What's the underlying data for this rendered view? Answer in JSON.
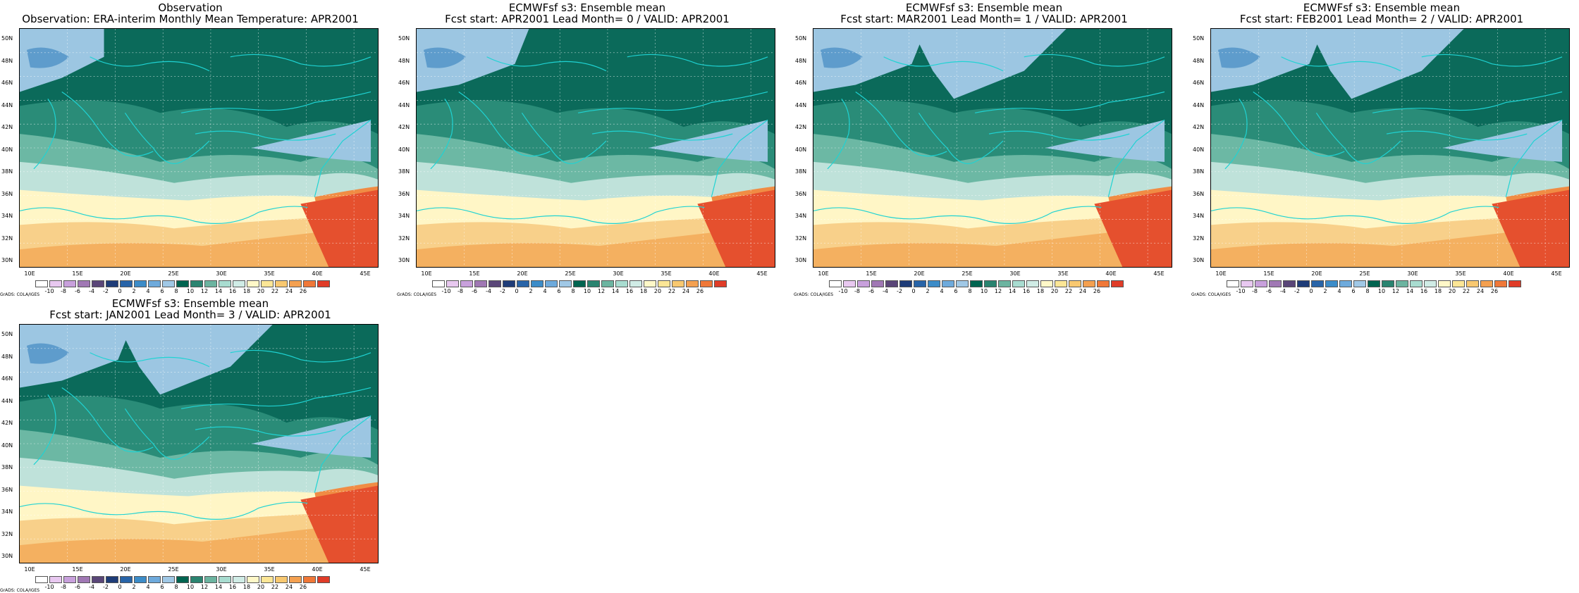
{
  "panels": [
    {
      "line1": "Observation",
      "line2": "Observation: ERA-interim Monthly Mean Temperature: APR2001"
    },
    {
      "line1": "ECMWFsf s3: Ensemble mean",
      "line2": "Fcst start: APR2001   Lead Month= 0 / VALID: APR2001"
    },
    {
      "line1": "ECMWFsf s3: Ensemble mean",
      "line2": "Fcst start: MAR2001   Lead Month= 1 / VALID: APR2001"
    },
    {
      "line1": "ECMWFsf s3: Ensemble mean",
      "line2": "Fcst start: FEB2001   Lead Month= 2 / VALID: APR2001"
    },
    {
      "line1": "ECMWFsf s3: Ensemble mean",
      "line2": "Fcst start: JAN2001   Lead Month= 3 / VALID: APR2001"
    }
  ],
  "lat_labels": [
    "50N",
    "48N",
    "46N",
    "44N",
    "42N",
    "40N",
    "38N",
    "36N",
    "34N",
    "32N",
    "30N"
  ],
  "lon_labels": [
    "10E",
    "15E",
    "20E",
    "25E",
    "30E",
    "35E",
    "40E",
    "45E"
  ],
  "colorbar": {
    "labels": [
      "-10",
      "-8",
      "-6",
      "-4",
      "-2",
      "0",
      "2",
      "4",
      "6",
      "8",
      "10",
      "12",
      "14",
      "16",
      "18",
      "20",
      "22",
      "24",
      "26"
    ],
    "colors": [
      "#ffffff",
      "#e8c8f0",
      "#c8a0dc",
      "#a078b4",
      "#5a4678",
      "#1e3c78",
      "#2864a8",
      "#3c8cc8",
      "#6eaadc",
      "#a0c8e6",
      "#006450",
      "#2a8470",
      "#6cb4a0",
      "#a8dcd0",
      "#d0ece6",
      "#fff8c8",
      "#fce696",
      "#f8c870",
      "#f4a050",
      "#f07838",
      "#e03c28"
    ]
  },
  "credit": "GrADS: COLA/IGES",
  "colors": {
    "coast": "#1fd3d3",
    "border": "#000000"
  }
}
